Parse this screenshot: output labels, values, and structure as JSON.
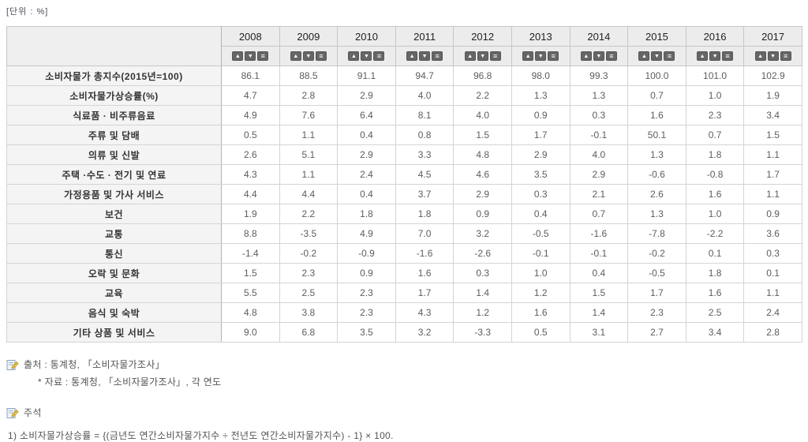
{
  "header": {
    "unit_label": "[단위 : %]"
  },
  "table": {
    "years": [
      "2008",
      "2009",
      "2010",
      "2011",
      "2012",
      "2013",
      "2014",
      "2015",
      "2016",
      "2017"
    ],
    "sort_icons": {
      "asc": "▲",
      "desc": "▼",
      "view": "≡"
    },
    "rows": [
      {
        "label": "소비자물가 총지수(2015년=100)",
        "values": [
          "86.1",
          "88.5",
          "91.1",
          "94.7",
          "96.8",
          "98.0",
          "99.3",
          "100.0",
          "101.0",
          "102.9"
        ]
      },
      {
        "label": "소비자물가상승률(%)",
        "values": [
          "4.7",
          "2.8",
          "2.9",
          "4.0",
          "2.2",
          "1.3",
          "1.3",
          "0.7",
          "1.0",
          "1.9"
        ]
      },
      {
        "label": "식료품 · 비주류음료",
        "values": [
          "4.9",
          "7.6",
          "6.4",
          "8.1",
          "4.0",
          "0.9",
          "0.3",
          "1.6",
          "2.3",
          "3.4"
        ]
      },
      {
        "label": "주류 및 담배",
        "values": [
          "0.5",
          "1.1",
          "0.4",
          "0.8",
          "1.5",
          "1.7",
          "-0.1",
          "50.1",
          "0.7",
          "1.5"
        ]
      },
      {
        "label": "의류 및 신발",
        "values": [
          "2.6",
          "5.1",
          "2.9",
          "3.3",
          "4.8",
          "2.9",
          "4.0",
          "1.3",
          "1.8",
          "1.1"
        ]
      },
      {
        "label": "주택 ·수도 · 전기 및 연료",
        "values": [
          "4.3",
          "1.1",
          "2.4",
          "4.5",
          "4.6",
          "3.5",
          "2.9",
          "-0.6",
          "-0.8",
          "1.7"
        ]
      },
      {
        "label": "가정용품 및 가사 서비스",
        "values": [
          "4.4",
          "4.4",
          "0.4",
          "3.7",
          "2.9",
          "0.3",
          "2.1",
          "2.6",
          "1.6",
          "1.1"
        ]
      },
      {
        "label": "보건",
        "values": [
          "1.9",
          "2.2",
          "1.8",
          "1.8",
          "0.9",
          "0.4",
          "0.7",
          "1.3",
          "1.0",
          "0.9"
        ]
      },
      {
        "label": "교통",
        "values": [
          "8.8",
          "-3.5",
          "4.9",
          "7.0",
          "3.2",
          "-0.5",
          "-1.6",
          "-7.8",
          "-2.2",
          "3.6"
        ]
      },
      {
        "label": "통신",
        "values": [
          "-1.4",
          "-0.2",
          "-0.9",
          "-1.6",
          "-2.6",
          "-0.1",
          "-0.1",
          "-0.2",
          "0.1",
          "0.3"
        ]
      },
      {
        "label": "오락 및 문화",
        "values": [
          "1.5",
          "2.3",
          "0.9",
          "1.6",
          "0.3",
          "1.0",
          "0.4",
          "-0.5",
          "1.8",
          "0.1"
        ]
      },
      {
        "label": "교육",
        "values": [
          "5.5",
          "2.5",
          "2.3",
          "1.7",
          "1.4",
          "1.2",
          "1.5",
          "1.7",
          "1.6",
          "1.1"
        ]
      },
      {
        "label": "음식 및 숙박",
        "values": [
          "4.8",
          "3.8",
          "2.3",
          "4.3",
          "1.2",
          "1.6",
          "1.4",
          "2.3",
          "2.5",
          "2.4"
        ]
      },
      {
        "label": "기타 상품 및 서비스",
        "values": [
          "9.0",
          "6.8",
          "3.5",
          "3.2",
          "-3.3",
          "0.5",
          "3.1",
          "2.7",
          "3.4",
          "2.8"
        ]
      }
    ]
  },
  "footer": {
    "source_line": "출처 : 통계청, 「소비자물가조사」",
    "data_line": "* 자료 : 통계청, 「소비자물가조사」, 각 연도",
    "note_title": "주석",
    "note_line": "1) 소비자물가상승률 = {(금년도 연간소비자물가지수 ÷ 전년도 연간소비자물가지수) - 1} × 100."
  },
  "colors": {
    "header_bg": "#ececec",
    "label_bg": "#f4f4f4",
    "cell_border": "#d4d4d4",
    "outer_border": "#9c9c9c",
    "sort_button_bg": "#666666",
    "label_text": "#333333",
    "value_text": "#5d5d5d"
  }
}
